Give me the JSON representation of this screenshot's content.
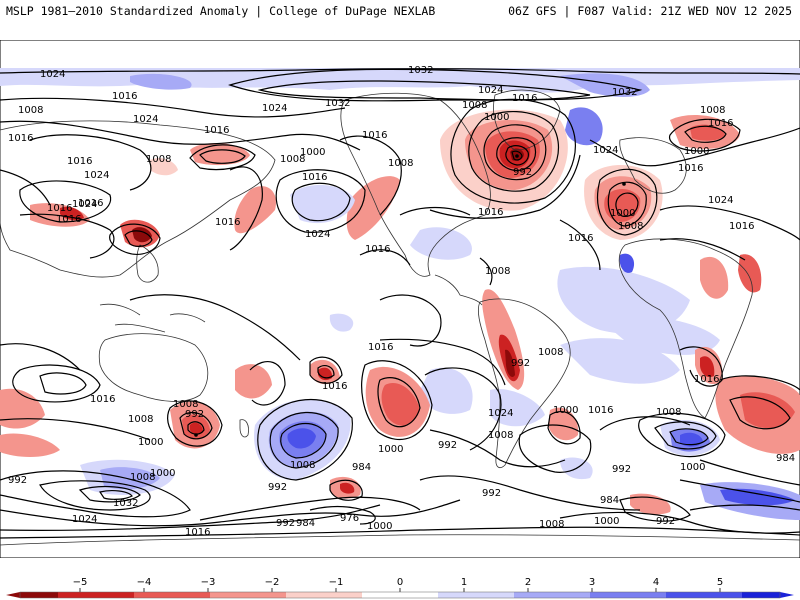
{
  "header": {
    "left": "MSLP 1981–2010 Standardized Anomaly | College of DuPage NEXLAB",
    "right": "06Z GFS | F087 Valid: 21Z WED NOV 12 2025"
  },
  "colors": {
    "neg5": "#8c0a0a",
    "neg4": "#cc2222",
    "neg3": "#e85a55",
    "neg2": "#f4958d",
    "neg1": "#fbd0c9",
    "pos1": "#d6d8fb",
    "pos2": "#a7aaf6",
    "pos3": "#7a7ff0",
    "pos4": "#4b52ea",
    "pos5": "#1a22d8",
    "land": "#ffffff",
    "coast": "#333333",
    "isobar": "#000000"
  },
  "colorbar": {
    "ticks": [
      "−5",
      "−4",
      "−3",
      "−2",
      "−1",
      "0",
      "1",
      "2",
      "3",
      "4",
      "5"
    ],
    "min": -5,
    "max": 5
  },
  "isobar_labels": [
    {
      "text": "1024"
    },
    {
      "text": "1032"
    },
    {
      "text": "1032"
    },
    {
      "text": "1024"
    },
    {
      "text": "1016"
    },
    {
      "text": "1008"
    },
    {
      "text": "1016"
    },
    {
      "text": "1024"
    },
    {
      "text": "1016"
    },
    {
      "text": "1016"
    },
    {
      "text": "1024"
    },
    {
      "text": "1016"
    },
    {
      "text": "1008"
    },
    {
      "text": "1000"
    },
    {
      "text": "1008"
    },
    {
      "text": "1016"
    },
    {
      "text": "1024"
    },
    {
      "text": "1016"
    },
    {
      "text": "1016"
    },
    {
      "text": "1016"
    },
    {
      "text": "1024"
    },
    {
      "text": "1008"
    },
    {
      "text": "1024"
    },
    {
      "text": "1016"
    },
    {
      "text": "1000"
    },
    {
      "text": "992"
    },
    {
      "text": "1016"
    },
    {
      "text": "1016"
    },
    {
      "text": "1032"
    },
    {
      "text": "1024"
    },
    {
      "text": "1008"
    },
    {
      "text": "1016"
    },
    {
      "text": "1000"
    },
    {
      "text": "1016"
    },
    {
      "text": "1024"
    },
    {
      "text": "1000"
    },
    {
      "text": "1008"
    },
    {
      "text": "1016"
    },
    {
      "text": "1008"
    },
    {
      "text": "1008"
    },
    {
      "text": "1016"
    },
    {
      "text": "1016"
    },
    {
      "text": "1016"
    },
    {
      "text": "1008"
    },
    {
      "text": "992"
    },
    {
      "text": "1008"
    },
    {
      "text": "1000"
    },
    {
      "text": "1016"
    },
    {
      "text": "1016"
    },
    {
      "text": "992"
    },
    {
      "text": "1008"
    },
    {
      "text": "1000"
    },
    {
      "text": "1024"
    },
    {
      "text": "1008"
    },
    {
      "text": "992"
    },
    {
      "text": "1016"
    },
    {
      "text": "1008"
    },
    {
      "text": "1032"
    },
    {
      "text": "1024"
    },
    {
      "text": "984"
    },
    {
      "text": "976"
    },
    {
      "text": "984"
    },
    {
      "text": "992"
    },
    {
      "text": "1000"
    },
    {
      "text": "992"
    },
    {
      "text": "1000"
    },
    {
      "text": "992"
    },
    {
      "text": "1008"
    },
    {
      "text": "1000"
    },
    {
      "text": "1016"
    },
    {
      "text": "1008"
    },
    {
      "text": "1000"
    },
    {
      "text": "992"
    },
    {
      "text": "984"
    },
    {
      "text": "984"
    },
    {
      "text": "1008"
    },
    {
      "text": "1000"
    },
    {
      "text": "992"
    },
    {
      "text": "1016"
    },
    {
      "text": "992"
    }
  ]
}
